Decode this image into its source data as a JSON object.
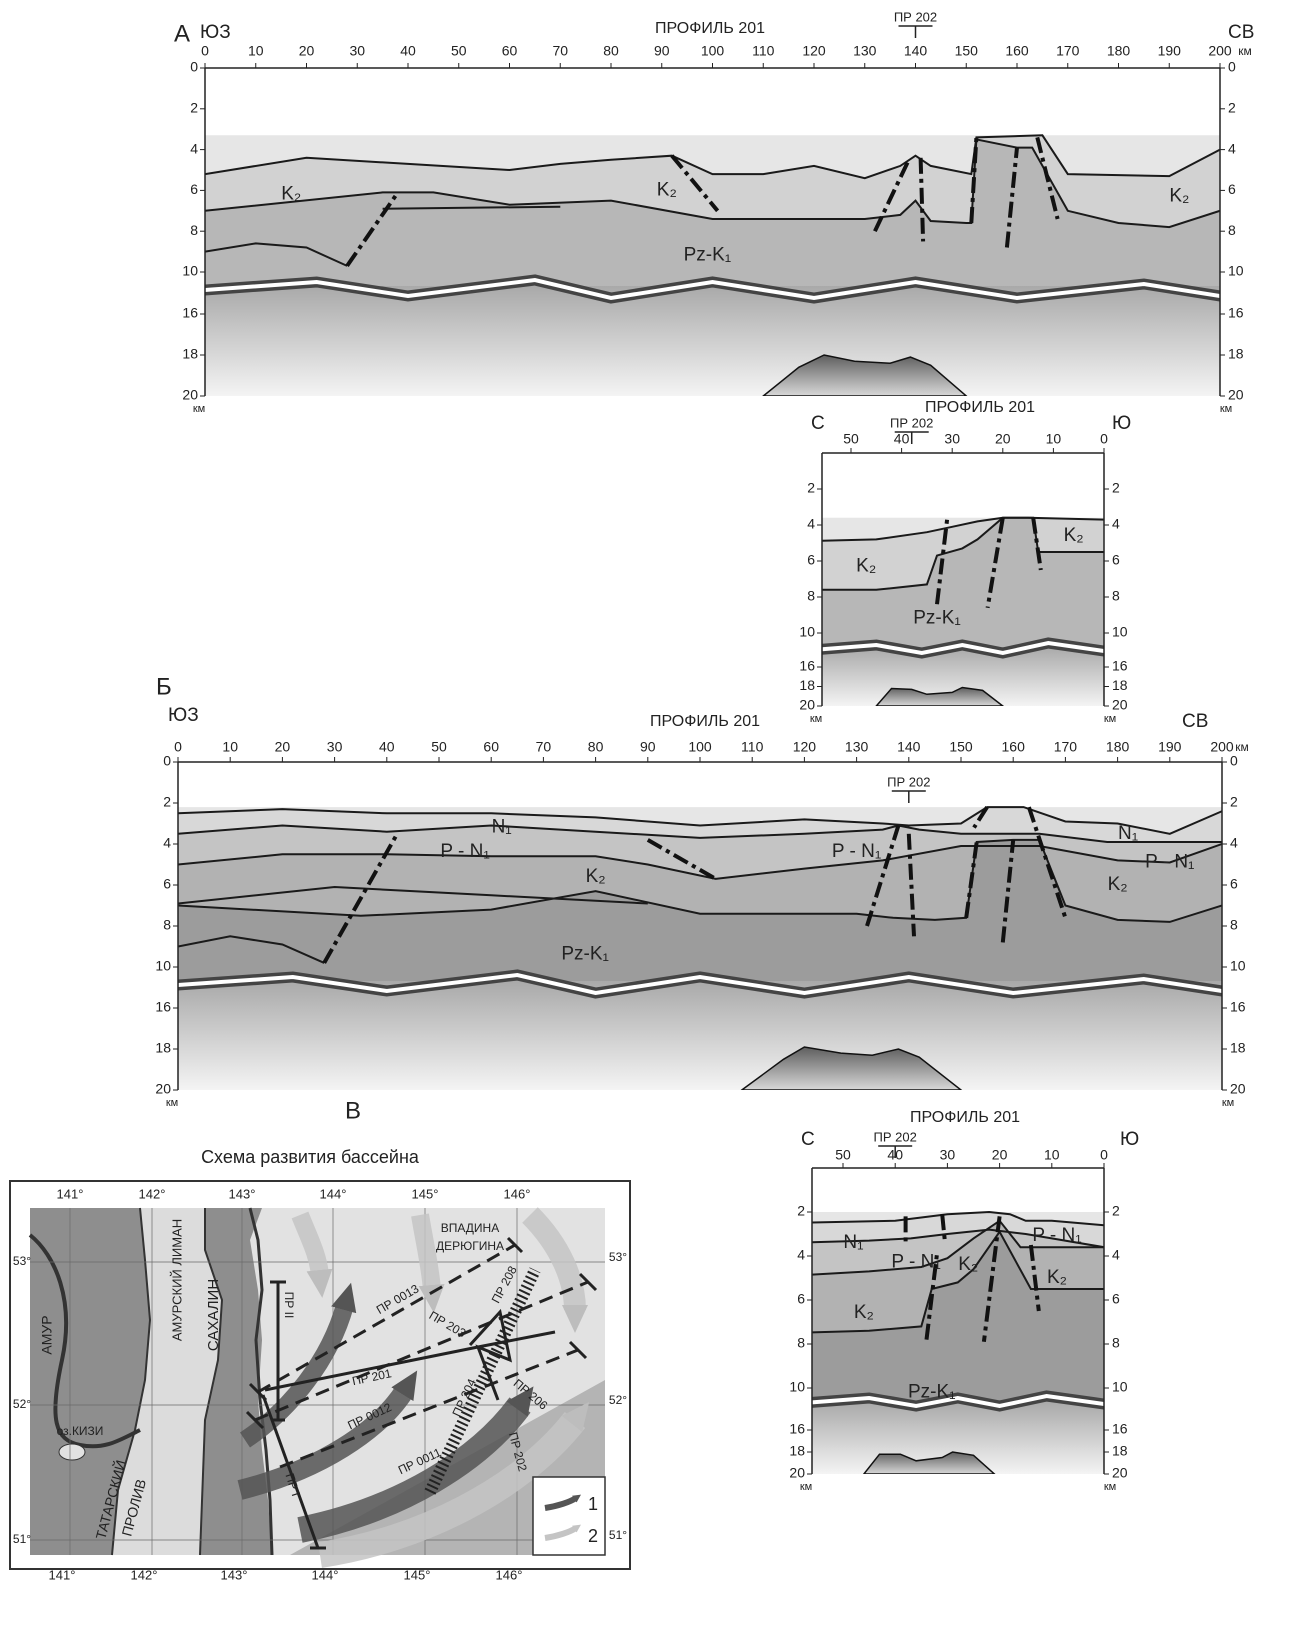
{
  "panel_a": {
    "letter": "А",
    "profile": {
      "title": "ПРОФИЛЬ 201",
      "left_direction": "ЮЗ",
      "right_direction": "СВ",
      "crossing": "ПР 202",
      "x_ticks": [
        0,
        10,
        20,
        30,
        40,
        50,
        60,
        70,
        80,
        90,
        100,
        110,
        120,
        130,
        140,
        150,
        160,
        170,
        180,
        190,
        200
      ],
      "x_unit": "км",
      "depth_ticks": [
        0,
        2,
        4,
        6,
        8,
        10,
        16,
        18,
        20
      ],
      "depth_unit": "км",
      "layer_labels": [
        "K₂",
        "K₂",
        "K₂",
        "Pz-K₁"
      ]
    },
    "cross_profile": {
      "title": "ПРОФИЛЬ 201",
      "left_direction": "С",
      "right_direction": "Ю",
      "crossing": "ПР 202",
      "x_ticks": [
        50,
        40,
        30,
        20,
        10,
        0
      ],
      "depth_ticks": [
        2,
        4,
        6,
        8,
        10,
        16,
        18,
        20
      ],
      "depth_unit": "км",
      "layer_labels": [
        "K₂",
        "K₂",
        "Pz-K₁"
      ]
    }
  },
  "panel_b": {
    "letter": "Б",
    "profile": {
      "title": "ПРОФИЛЬ 201",
      "left_direction": "ЮЗ",
      "right_direction": "СВ",
      "crossing": "ПР 202",
      "x_ticks": [
        0,
        10,
        20,
        30,
        40,
        50,
        60,
        70,
        80,
        90,
        100,
        110,
        120,
        130,
        140,
        150,
        160,
        170,
        180,
        190,
        200
      ],
      "x_unit": "км",
      "depth_ticks": [
        0,
        2,
        4,
        6,
        8,
        10,
        16,
        18,
        20
      ],
      "depth_unit": "км",
      "layer_labels": [
        "N₁",
        "P - N₁",
        "P - N₁",
        "N₁",
        "P - N₁",
        "K₂",
        "K₂",
        "Pz-K₁"
      ]
    },
    "cross_profile": {
      "title": "ПРОФИЛЬ 201",
      "left_direction": "С",
      "right_direction": "Ю",
      "crossing": "ПР 202",
      "x_ticks": [
        50,
        40,
        30,
        20,
        10,
        0
      ],
      "depth_ticks": [
        2,
        4,
        6,
        8,
        10,
        16,
        18,
        20
      ],
      "depth_unit": "км",
      "layer_labels": [
        "N₁",
        "P - N₁",
        "K₂",
        "P - N₁",
        "K₂",
        "K₂",
        "Pz-K₁"
      ]
    }
  },
  "panel_c": {
    "letter": "В",
    "title": "Схема развития бассейна",
    "longitudes": [
      "141°",
      "142°",
      "143°",
      "144°",
      "145°",
      "146°"
    ],
    "latitudes": [
      "53°",
      "52°",
      "51°"
    ],
    "places": [
      "АМУР",
      "АМУРСКИЙ ЛИМАН",
      "САХАЛИН",
      "ТАТАРСКИЙ",
      "ПРОЛИВ",
      "оз.КИЗИ",
      "ВПАДИНА",
      "ДЕРЮГИНА"
    ],
    "profiles": [
      "ПР 0013",
      "ПР 203",
      "ПР 208",
      "ПР 201",
      "ПР 0012",
      "ПР 204",
      "ПР 206",
      "ПР 202",
      "ПР 0011",
      "ПР II",
      "ПР I"
    ],
    "legend": [
      "1",
      "2"
    ]
  }
}
